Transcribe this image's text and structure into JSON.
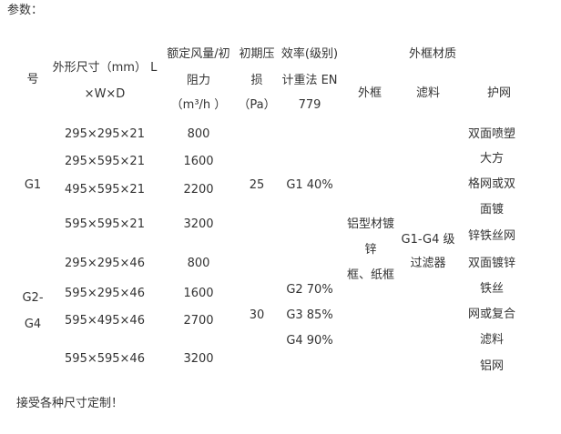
{
  "title": "参数：",
  "header": {
    "model": "号",
    "size": [
      "外形尺寸（mm） L",
      "×W×D"
    ],
    "flow": [
      "额定风量/初",
      "阻力",
      "（m³/h ）"
    ],
    "pressure": [
      "初期压",
      "损",
      "（Pa）"
    ],
    "efficiency": [
      "效率(级别)",
      "计重法 EN",
      "779"
    ],
    "material": "外框材质",
    "frame": "外框",
    "filter": "滤料",
    "net": "护网"
  },
  "rows": [
    {
      "size": "295×295×21",
      "flow": "800"
    },
    {
      "size": "295×595×21",
      "flow": "1600"
    },
    {
      "size": "495×595×21",
      "flow": "2200"
    },
    {
      "size": "595×595×21",
      "flow": "3200"
    },
    {
      "size": "295×295×46",
      "flow": "800"
    },
    {
      "size": "595×295×46",
      "flow": "1600"
    },
    {
      "size": "595×495×46",
      "flow": "2700"
    },
    {
      "size": "595×595×46",
      "flow": "3200"
    }
  ],
  "groups": {
    "g1": "G1",
    "g2": [
      "G2-",
      "G4"
    ],
    "p1": "25",
    "p2": "30",
    "e1": "G1 40%",
    "e2": [
      "G2 70%",
      "G3 85%",
      "G4 90%"
    ]
  },
  "frame": [
    "铝型材镀",
    "锌",
    "框、纸框"
  ],
  "filter": [
    "G1-G4 级",
    "过滤器"
  ],
  "net": [
    "双面喷塑",
    "大方",
    "格网或双",
    "面镀",
    "锌铁丝网",
    "双面镀锌",
    "铁丝",
    "网或复合",
    "滤料",
    "铝网"
  ],
  "footer": "接受各种尺寸定制！"
}
